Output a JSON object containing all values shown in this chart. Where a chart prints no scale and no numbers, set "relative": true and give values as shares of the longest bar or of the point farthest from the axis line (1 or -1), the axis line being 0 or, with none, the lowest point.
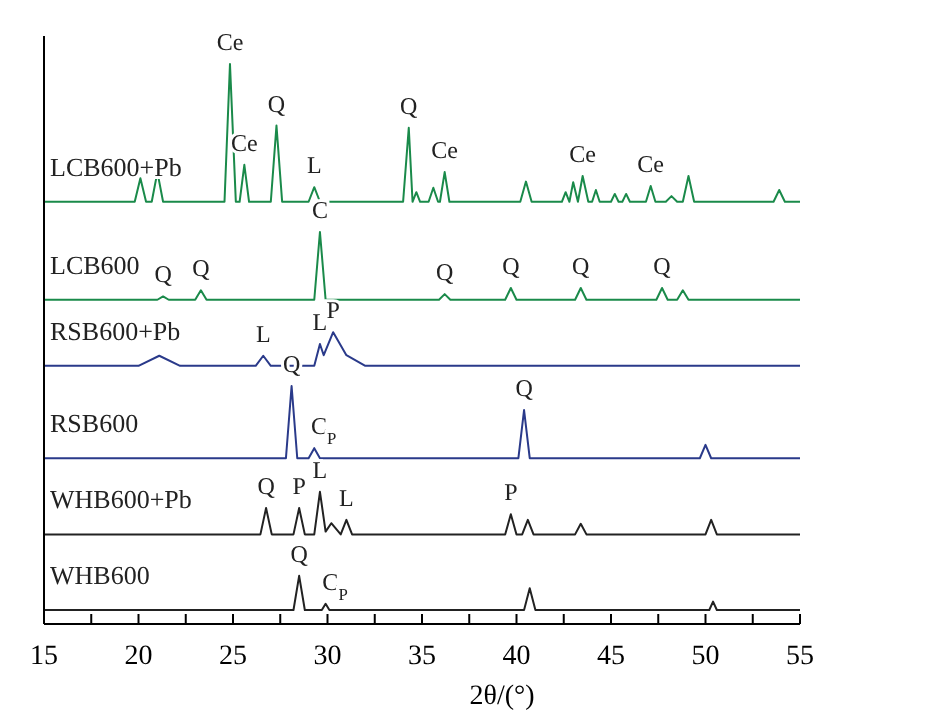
{
  "chart_data": {
    "type": "line",
    "relative": true,
    "xlabel": "2θ/(°)",
    "xlim": [
      15,
      55
    ],
    "xticks": [
      15,
      {
        "value": 17.5,
        "label": null
      },
      20,
      {
        "value": 22.5,
        "label": null
      },
      25,
      {
        "value": 27.5,
        "label": null
      },
      30,
      {
        "value": 32.5,
        "label": null
      },
      35,
      {
        "value": 37.5,
        "label": null
      },
      40,
      {
        "value": 42.5,
        "label": null
      },
      45,
      {
        "value": 47.5,
        "label": null
      },
      50,
      {
        "value": 52.5,
        "label": null
      },
      55
    ],
    "tick_labels": "x",
    "grid": false,
    "legend": false,
    "marker": "none",
    "line_style": "solid",
    "series": [
      {
        "name": "WHB600",
        "color": "#222222",
        "x": [
          15,
          28.2,
          28.5,
          28.8,
          29.7,
          29.9,
          30.1,
          40.4,
          40.7,
          41.0,
          50.2,
          50.4,
          50.6,
          55
        ],
        "values": [
          0.025,
          0.025,
          0.086,
          0.025,
          0.025,
          0.036,
          0.025,
          0.025,
          0.064,
          0.025,
          0.025,
          0.04,
          0.025,
          0.025
        ]
      },
      {
        "name": "WHB600+Pb",
        "color": "#222222",
        "x": [
          15,
          26.45,
          26.75,
          27.05,
          28.2,
          28.5,
          28.8,
          29.3,
          29.6,
          29.9,
          30.2,
          30.7,
          31.0,
          31.3,
          39.4,
          39.7,
          40.0,
          40.3,
          40.6,
          40.9,
          43.1,
          43.4,
          43.7,
          50.0,
          50.3,
          50.6,
          55
        ],
        "values": [
          0.16,
          0.16,
          0.207,
          0.16,
          0.16,
          0.207,
          0.16,
          0.16,
          0.236,
          0.165,
          0.18,
          0.16,
          0.186,
          0.16,
          0.16,
          0.196,
          0.16,
          0.16,
          0.186,
          0.16,
          0.16,
          0.179,
          0.16,
          0.16,
          0.186,
          0.16,
          0.16
        ]
      },
      {
        "name": "RSB600",
        "color": "#2a3a8a",
        "x": [
          15,
          27.8,
          28.1,
          28.4,
          29.0,
          29.3,
          29.6,
          40.1,
          40.4,
          40.7,
          49.7,
          50.0,
          50.3,
          55
        ],
        "values": [
          0.296,
          0.296,
          0.425,
          0.296,
          0.296,
          0.314,
          0.296,
          0.296,
          0.382,
          0.296,
          0.296,
          0.32,
          0.296,
          0.296
        ]
      },
      {
        "name": "RSB600+Pb",
        "color": "#2a3a8a",
        "x": [
          15,
          20,
          21.1,
          22.2,
          26.2,
          26.6,
          27.0,
          29.3,
          29.6,
          29.8,
          30.3,
          31.0,
          32,
          55
        ],
        "values": [
          0.461,
          0.461,
          0.479,
          0.461,
          0.461,
          0.479,
          0.461,
          0.461,
          0.5,
          0.48,
          0.521,
          0.48,
          0.461,
          0.461
        ]
      },
      {
        "name": "LCB600",
        "color": "#1a8a4a",
        "x": [
          15,
          21.0,
          21.3,
          21.6,
          23.0,
          23.3,
          23.6,
          29.3,
          29.6,
          29.9,
          35.9,
          36.2,
          36.5,
          39.4,
          39.7,
          40.0,
          43.1,
          43.4,
          43.7,
          47.4,
          47.7,
          48.0,
          48.5,
          48.8,
          49.1,
          55
        ],
        "values": [
          0.579,
          0.579,
          0.585,
          0.579,
          0.579,
          0.596,
          0.579,
          0.579,
          0.7,
          0.579,
          0.579,
          0.589,
          0.579,
          0.579,
          0.6,
          0.579,
          0.579,
          0.6,
          0.579,
          0.579,
          0.6,
          0.579,
          0.579,
          0.596,
          0.579,
          0.579
        ]
      },
      {
        "name": "LCB600+Pb",
        "color": "#1a8a4a",
        "x": [
          15,
          19.8,
          20.1,
          20.4,
          20.7,
          21.0,
          21.3,
          24.55,
          24.84,
          25.15,
          25.35,
          25.6,
          25.85,
          27.0,
          27.3,
          27.6,
          29.0,
          29.3,
          29.6,
          34.0,
          34.3,
          34.5,
          34.7,
          34.9,
          35.35,
          35.6,
          35.85,
          35.95,
          36.2,
          36.45,
          40.2,
          40.5,
          40.8,
          42.4,
          42.6,
          42.8,
          43.0,
          43.25,
          43.5,
          43.8,
          44.0,
          44.2,
          44.4,
          45.0,
          45.2,
          45.4,
          45.6,
          45.8,
          46.0,
          46.85,
          47.1,
          47.35,
          47.9,
          48.2,
          48.5,
          48.8,
          49.1,
          49.4,
          53.6,
          53.9,
          54.2,
          55
        ],
        "values": [
          0.754,
          0.754,
          0.796,
          0.754,
          0.754,
          0.807,
          0.754,
          0.754,
          1,
          0.754,
          0.754,
          0.82,
          0.754,
          0.754,
          0.89,
          0.754,
          0.754,
          0.78,
          0.754,
          0.754,
          0.886,
          0.754,
          0.771,
          0.754,
          0.754,
          0.779,
          0.754,
          0.754,
          0.807,
          0.754,
          0.754,
          0.79,
          0.754,
          0.754,
          0.771,
          0.754,
          0.789,
          0.754,
          0.8,
          0.754,
          0.754,
          0.775,
          0.754,
          0.754,
          0.768,
          0.754,
          0.754,
          0.768,
          0.754,
          0.754,
          0.782,
          0.754,
          0.754,
          0.764,
          0.754,
          0.754,
          0.8,
          0.754,
          0.754,
          0.775,
          0.754,
          0.754
        ]
      }
    ],
    "annotations": [
      {
        "text": "Ce",
        "x": 24.84,
        "y": 1
      },
      {
        "text": "Ce",
        "x": 25.6,
        "y": 0.82
      },
      {
        "text": "Q",
        "x": 27.3,
        "y": 0.89
      },
      {
        "text": "L",
        "x": 29.3,
        "y": 0.78
      },
      {
        "text": "Q",
        "x": 34.3,
        "y": 0.886
      },
      {
        "text": "Ce",
        "x": 36.2,
        "y": 0.807
      },
      {
        "text": "Ce",
        "x": 43.5,
        "y": 0.8
      },
      {
        "text": "Ce",
        "x": 47.1,
        "y": 0.782
      },
      {
        "text": "Q",
        "x": 21.3,
        "y": 0.585
      },
      {
        "text": "Q",
        "x": 23.3,
        "y": 0.596
      },
      {
        "text": "C",
        "x": 29.6,
        "y": 0.7
      },
      {
        "text": "Q",
        "x": 36.2,
        "y": 0.589
      },
      {
        "text": "Q",
        "x": 39.7,
        "y": 0.6
      },
      {
        "text": "Q",
        "x": 43.4,
        "y": 0.6
      },
      {
        "text": "Q",
        "x": 47.7,
        "y": 0.6
      },
      {
        "text": "L",
        "x": 26.6,
        "y": 0.479
      },
      {
        "text": "L",
        "x": 29.6,
        "y": 0.5
      },
      {
        "text": "P",
        "x": 30.3,
        "y": 0.521
      },
      {
        "text": "Q",
        "x": 28.1,
        "y": 0.425
      },
      {
        "text": "C$_{P}$",
        "x": 29.8,
        "y": 0.314
      },
      {
        "text": "Q",
        "x": 40.4,
        "y": 0.382
      },
      {
        "text": "Q",
        "x": 26.75,
        "y": 0.207
      },
      {
        "text": "P",
        "x": 28.5,
        "y": 0.207
      },
      {
        "text": "L",
        "x": 29.6,
        "y": 0.236
      },
      {
        "text": "L",
        "x": 31.0,
        "y": 0.186
      },
      {
        "text": "P",
        "x": 39.7,
        "y": 0.196
      },
      {
        "text": "Q",
        "x": 28.5,
        "y": 0.086
      },
      {
        "text": "C$_{P}$",
        "x": 30.4,
        "y": 0.036
      }
    ]
  }
}
